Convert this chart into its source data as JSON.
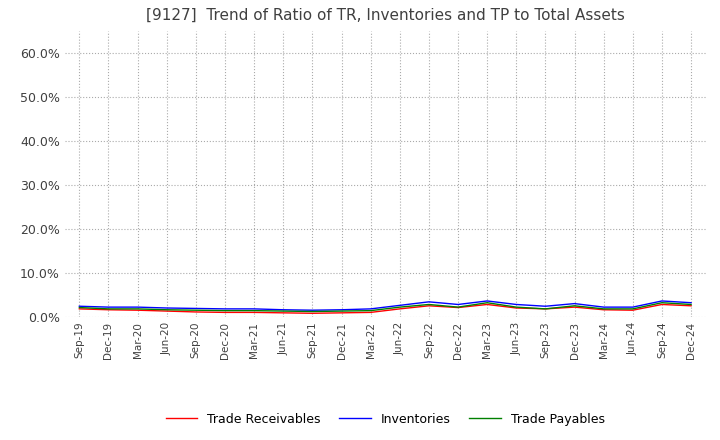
{
  "title": "[9127]  Trend of Ratio of TR, Inventories and TP to Total Assets",
  "title_fontsize": 11,
  "title_color": "#404040",
  "x_labels": [
    "Sep-19",
    "Dec-19",
    "Mar-20",
    "Jun-20",
    "Sep-20",
    "Dec-20",
    "Mar-21",
    "Jun-21",
    "Sep-21",
    "Dec-21",
    "Mar-22",
    "Jun-22",
    "Sep-22",
    "Dec-22",
    "Mar-23",
    "Jun-23",
    "Sep-23",
    "Dec-23",
    "Mar-24",
    "Jun-24",
    "Sep-24",
    "Dec-24"
  ],
  "trade_receivables": [
    0.018,
    0.016,
    0.015,
    0.013,
    0.011,
    0.01,
    0.01,
    0.009,
    0.008,
    0.009,
    0.01,
    0.018,
    0.025,
    0.021,
    0.028,
    0.02,
    0.018,
    0.022,
    0.016,
    0.015,
    0.028,
    0.025
  ],
  "inventories": [
    0.024,
    0.022,
    0.022,
    0.02,
    0.019,
    0.018,
    0.018,
    0.016,
    0.015,
    0.016,
    0.018,
    0.026,
    0.034,
    0.028,
    0.036,
    0.028,
    0.024,
    0.03,
    0.022,
    0.022,
    0.036,
    0.032
  ],
  "trade_payables": [
    0.021,
    0.018,
    0.018,
    0.016,
    0.015,
    0.014,
    0.014,
    0.013,
    0.012,
    0.013,
    0.014,
    0.022,
    0.028,
    0.022,
    0.032,
    0.022,
    0.018,
    0.025,
    0.018,
    0.018,
    0.032,
    0.028
  ],
  "tr_color": "#ff0000",
  "inv_color": "#0000ff",
  "tp_color": "#008000",
  "ylim": [
    0.0,
    0.65
  ],
  "yticks": [
    0.0,
    0.1,
    0.2,
    0.3,
    0.4,
    0.5,
    0.6
  ],
  "ytick_labels": [
    "0.0%",
    "10.0%",
    "20.0%",
    "30.0%",
    "40.0%",
    "50.0%",
    "60.0%"
  ],
  "grid_color": "#aaaaaa",
  "background_color": "#ffffff",
  "legend_labels": [
    "Trade Receivables",
    "Inventories",
    "Trade Payables"
  ],
  "line_width": 1.0
}
